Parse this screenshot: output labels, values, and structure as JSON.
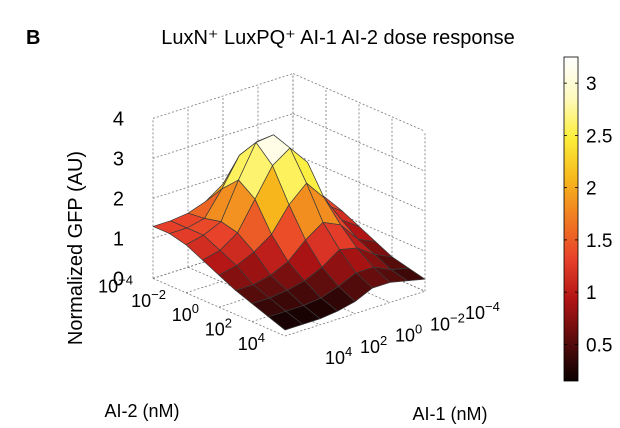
{
  "panel_letter": "B",
  "chart_data": {
    "type": "surface",
    "title": "LuxN⁺ LuxPQ⁺ AI-1 AI-2 dose response",
    "xlabel": "AI-1 (nM)",
    "ylabel": "AI-2 (nM)",
    "zlabel": "Normalized GFP (AU)",
    "x_scale": "log",
    "y_scale": "log",
    "x_range": [
      0.0001,
      10000
    ],
    "y_range": [
      0.0001,
      10000
    ],
    "z_range": [
      0,
      4
    ],
    "x_ticks": [
      {
        "value": 10000,
        "base": "10",
        "exp": "4"
      },
      {
        "value": 100,
        "base": "10",
        "exp": "2"
      },
      {
        "value": 1,
        "base": "10",
        "exp": "0"
      },
      {
        "value": 0.01,
        "base": "10",
        "exp": "−2"
      },
      {
        "value": 0.0001,
        "base": "10",
        "exp": "−4"
      }
    ],
    "y_ticks": [
      {
        "value": 0.0001,
        "base": "10",
        "exp": "−4"
      },
      {
        "value": 0.01,
        "base": "10",
        "exp": "−2"
      },
      {
        "value": 1,
        "base": "10",
        "exp": "0"
      },
      {
        "value": 100,
        "base": "10",
        "exp": "2"
      },
      {
        "value": 10000,
        "base": "10",
        "exp": "4"
      }
    ],
    "z_ticks": [
      "0",
      "1",
      "2",
      "3",
      "4"
    ],
    "grid": true,
    "colormap": "hot",
    "colorbar": {
      "range": [
        0.15,
        3.25
      ],
      "ticks": [
        "0.5",
        "1",
        "1.5",
        "2",
        "2.5",
        "3"
      ],
      "placement": "right"
    },
    "x_log10_grid": [
      4,
      3,
      2,
      1,
      0,
      -1,
      -2,
      -3,
      -4
    ],
    "y_log10_grid": [
      -4,
      -3,
      -2,
      -1,
      0,
      1,
      2,
      3,
      4
    ],
    "z_values": [
      [
        1.3,
        1.3,
        1.35,
        1.5,
        1.8,
        1.85,
        1.7,
        1.5,
        1.3
      ],
      [
        1.3,
        1.3,
        1.4,
        2.0,
        2.7,
        2.9,
        2.3,
        1.6,
        1.3
      ],
      [
        1.2,
        1.3,
        1.5,
        2.4,
        3.2,
        3.25,
        2.7,
        1.7,
        1.25
      ],
      [
        1.0,
        1.1,
        1.4,
        2.1,
        2.8,
        3.1,
        2.6,
        1.4,
        1.1
      ],
      [
        0.8,
        0.9,
        1.1,
        1.4,
        2.0,
        2.4,
        1.9,
        1.2,
        0.9
      ],
      [
        0.6,
        0.6,
        0.7,
        0.9,
        1.3,
        1.6,
        1.4,
        0.9,
        0.7
      ],
      [
        0.45,
        0.45,
        0.5,
        0.6,
        0.8,
        1.1,
        1.0,
        0.7,
        0.5
      ],
      [
        0.3,
        0.3,
        0.3,
        0.35,
        0.5,
        0.7,
        0.7,
        0.5,
        0.4
      ],
      [
        0.15,
        0.15,
        0.15,
        0.2,
        0.3,
        0.5,
        0.5,
        0.4,
        0.3
      ]
    ],
    "colors": {
      "hot_stops": [
        "#0a0000",
        "#5a0c0c",
        "#b01414",
        "#e8402a",
        "#f07a22",
        "#f7b81c",
        "#fcee3a",
        "#fffac0",
        "#ffffff"
      ],
      "edge": "#3a3a3a",
      "grid": "#777777",
      "axis": "#000000"
    }
  }
}
